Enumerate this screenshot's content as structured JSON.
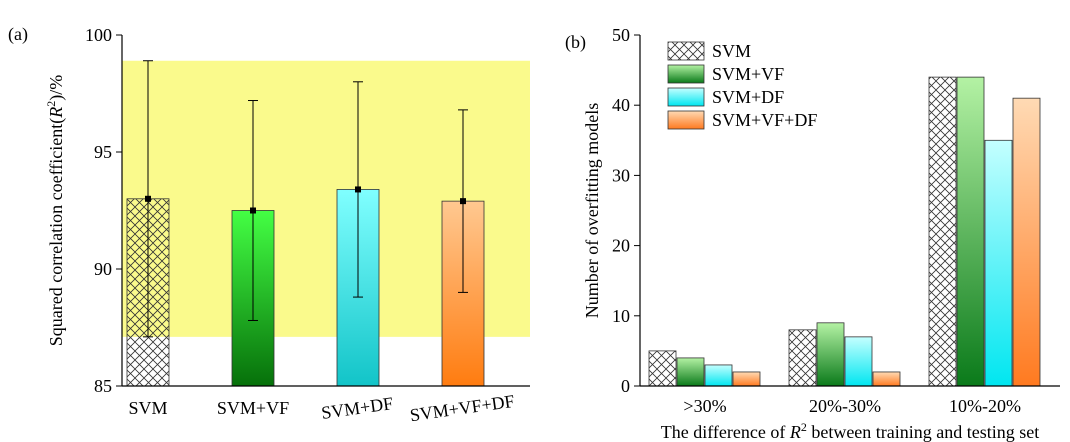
{
  "chart_data": [
    {
      "type": "bar",
      "label": "(a)",
      "categories": [
        "SVM",
        "SVM+VF",
        "SVM+DF",
        "SVM+VF+DF"
      ],
      "values": [
        93.0,
        92.5,
        93.4,
        92.9
      ],
      "errors": [
        5.9,
        4.7,
        4.6,
        3.9
      ],
      "styles": [
        {
          "pattern": "crosshatch"
        },
        {
          "color": [
            "#44ff44",
            "#06700a"
          ]
        },
        {
          "color": [
            "#80ffff",
            "#12c4c8"
          ]
        },
        {
          "color": [
            "#ffc890",
            "#ff7c10"
          ]
        }
      ],
      "highlight_band": [
        87.1,
        98.9
      ],
      "highlight_color": "#fafa8c",
      "ylim": [
        85,
        100
      ],
      "yticks": [
        85,
        90,
        95,
        100
      ],
      "ylabel": {
        "text": "Squared correlation coefficient(",
        "italic": "R",
        "superscript": "2",
        "tail": ")/%"
      }
    },
    {
      "type": "bar",
      "label": "(b)",
      "categories": [
        ">30%",
        "20%-30%",
        "10%-20%"
      ],
      "series": [
        {
          "name": "SVM",
          "pattern": "crosshatch",
          "values": [
            5,
            8,
            44
          ]
        },
        {
          "name": "SVM+VF",
          "color": [
            "#b4f2a4",
            "#0a7a1a"
          ],
          "values": [
            4,
            9,
            44
          ]
        },
        {
          "name": "SVM+DF",
          "color": [
            "#c4ffff",
            "#00e6f0"
          ],
          "values": [
            3,
            7,
            35
          ]
        },
        {
          "name": "SVM+VF+DF",
          "color": [
            "#ffdab4",
            "#ff7a20"
          ],
          "values": [
            2,
            2,
            41
          ]
        }
      ],
      "ylim": [
        0,
        50
      ],
      "yticks": [
        0,
        10,
        20,
        30,
        40,
        50
      ],
      "ylabel": {
        "text": "Number of overfitting models"
      },
      "xlabel": {
        "text": "The difference of ",
        "italic": "R",
        "superscript": "2",
        "tail": " between training and testing set"
      },
      "legend": "upper-left"
    }
  ]
}
